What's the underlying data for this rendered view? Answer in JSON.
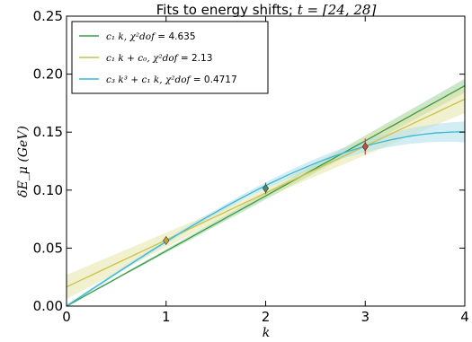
{
  "chart_data": {
    "type": "line",
    "title": "Fits to energy shifts; t = [24, 28]",
    "title_parts": {
      "prefix": "Fits to energy shifts; ",
      "math": "t = [24, 28]"
    },
    "xlabel": "k",
    "ylabel": "δE_μ (GeV)",
    "xlim": [
      0,
      4
    ],
    "ylim": [
      0,
      0.25
    ],
    "xticks": [
      0,
      1,
      2,
      3,
      4
    ],
    "xtick_labels": [
      "0",
      "1",
      "2",
      "3",
      "4"
    ],
    "yticks": [
      0,
      0.05,
      0.1,
      0.15,
      0.2,
      0.25
    ],
    "ytick_labels": [
      "0.00",
      "0.05",
      "0.10",
      "0.15",
      "0.20",
      "0.25"
    ],
    "grid": false,
    "legend_position": "top-left",
    "points": [
      {
        "x": 1,
        "y": 0.0565,
        "err": 0.003,
        "color": "#c8a03a"
      },
      {
        "x": 2,
        "y": 0.1015,
        "err": 0.005,
        "color": "#4a8a6a"
      },
      {
        "x": 3,
        "y": 0.1375,
        "err": 0.007,
        "color": "#c0503a"
      }
    ],
    "series": [
      {
        "name": "c1 k, χ²dof = 4.635",
        "legend_math": "c₁ k, χ²dof",
        "legend_value": "4.635",
        "color": "#3a9a48",
        "band_color": "#9fd39f",
        "model": "c1k",
        "params": {
          "c1": 0.0475
        },
        "band_halfwidth_at_4": 0.006
      },
      {
        "name": "c1 k + c0, χ²dof = 2.13",
        "legend_math": "c₁ k + c₀, χ²dof",
        "legend_value": "2.13",
        "color": "#c8c44a",
        "band_color": "#e6e4a8",
        "model": "c1k_c0",
        "params": {
          "c1": 0.0405,
          "c0": 0.0165
        },
        "band_halfwidth_at_4": 0.012
      },
      {
        "name": "c3 k³ + c1 k, χ²dof = 0.4717",
        "legend_math": "c₃ k³ + c₁ k, χ²dof",
        "legend_value": "0.4717",
        "color": "#3ab8d0",
        "band_color": "#aedfec",
        "model": "c3k3_c1k",
        "params": {
          "c1": 0.05675,
          "c3": -0.0012
        },
        "band_halfwidth_at_4": 0.009
      }
    ]
  }
}
